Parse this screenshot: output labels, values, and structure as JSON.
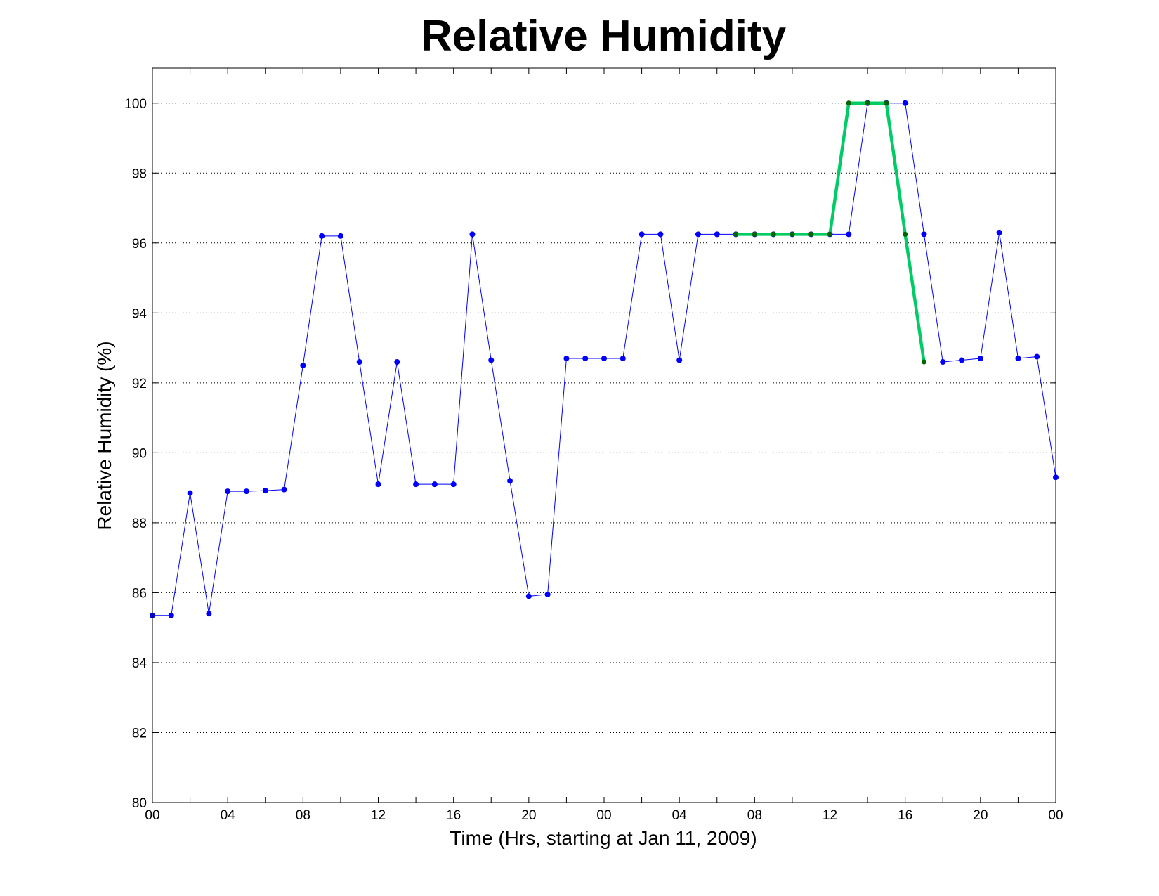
{
  "chart_data": {
    "type": "line",
    "title": "Relative Humidity",
    "xlabel": "Time (Hrs, starting at Jan 11, 2009)",
    "ylabel": "Relative Humidity (%)",
    "xlim": [
      0,
      48
    ],
    "ylim": [
      80,
      101
    ],
    "grid": "y-dotted",
    "x_tick_values": [
      0,
      4,
      8,
      12,
      16,
      20,
      24,
      28,
      32,
      36,
      40,
      44,
      48
    ],
    "x_tick_labels": [
      "00",
      "04",
      "08",
      "12",
      "16",
      "20",
      "00",
      "04",
      "08",
      "12",
      "16",
      "20",
      "00"
    ],
    "y_ticks": [
      80,
      82,
      84,
      86,
      88,
      90,
      92,
      94,
      96,
      98,
      100
    ],
    "x_minor_ticks": [
      2,
      6,
      10,
      14,
      18,
      22,
      26,
      30,
      34,
      38,
      42,
      46
    ],
    "series": [
      {
        "color": "#0000ff",
        "x": [
          0,
          1,
          2,
          3,
          4,
          5,
          6,
          7,
          8,
          9,
          10,
          11,
          12,
          13,
          14,
          15,
          16,
          17,
          18,
          19,
          20,
          21,
          22,
          23,
          24,
          25,
          26,
          27,
          28,
          29,
          30,
          31,
          32,
          33,
          34,
          35,
          36,
          37,
          38,
          39,
          40,
          41,
          42,
          43,
          44,
          45,
          46,
          47,
          48
        ],
        "y": [
          85.35,
          85.35,
          88.85,
          85.4,
          88.9,
          88.9,
          88.92,
          88.95,
          92.5,
          96.2,
          96.2,
          92.6,
          89.1,
          92.6,
          89.1,
          89.1,
          89.1,
          96.25,
          92.65,
          89.2,
          85.9,
          85.95,
          92.7,
          92.7,
          92.7,
          92.7,
          96.25,
          96.25,
          92.65,
          96.25,
          96.25,
          96.25,
          96.25,
          96.25,
          96.25,
          96.25,
          96.25,
          96.25,
          100,
          100,
          100,
          96.25,
          92.6,
          92.65,
          92.7,
          96.3,
          92.7,
          92.75,
          89.3
        ]
      },
      {
        "color": "#00cc66",
        "marker_color": "#006600",
        "x": [
          31,
          32,
          33,
          34,
          35,
          36,
          37,
          38,
          39,
          40,
          41
        ],
        "y": [
          96.25,
          96.25,
          96.25,
          96.25,
          96.25,
          96.25,
          100,
          100,
          100,
          96.25,
          92.6
        ]
      }
    ]
  }
}
